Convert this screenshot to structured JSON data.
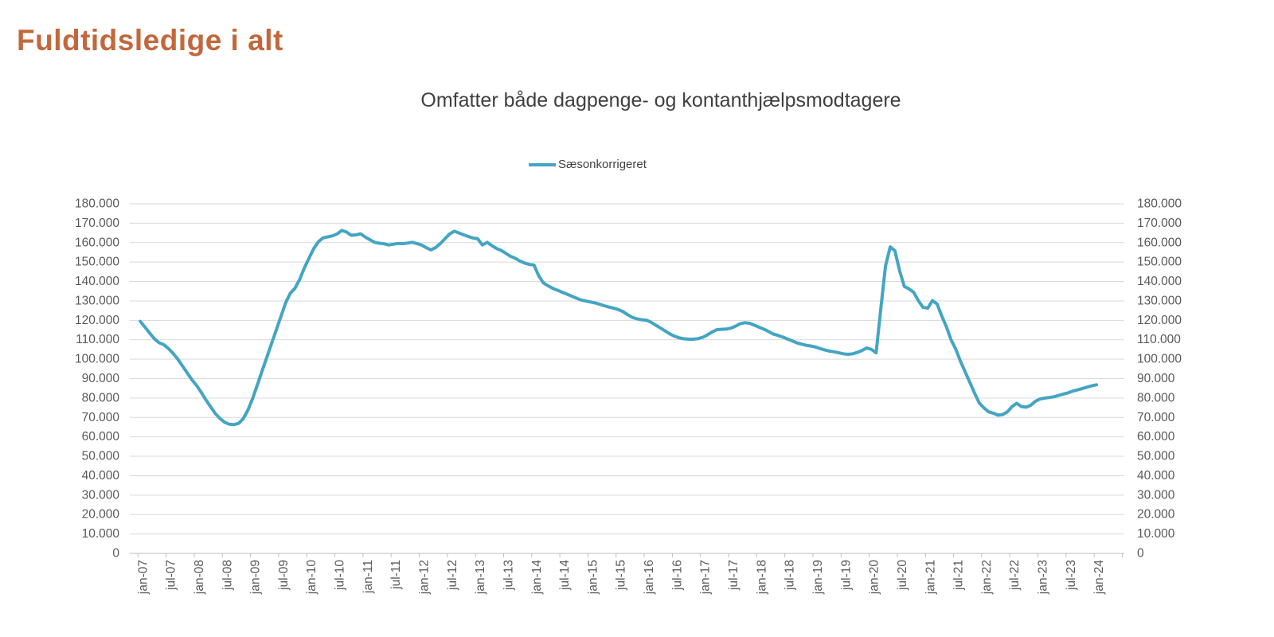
{
  "header": {
    "title": "Fuldtidsledige i alt"
  },
  "chart": {
    "subtitle": "Omfatter både dagpenge- og kontanthjælpsmodtagere",
    "legend": {
      "label": "Sæsonkorrigeret"
    }
  },
  "colors": {
    "title": "#C2683C",
    "subtitle": "#404040",
    "series_line": "#44A5C2",
    "gridline": "#D9D9D9",
    "axis_line": "#BFBFBF",
    "tick_label": "#595959"
  },
  "chart_data": {
    "type": "line",
    "title": "Omfatter både dagpenge- og kontanthjælpsmodtagere",
    "xlabel": "",
    "ylabel": "",
    "ylim": [
      0,
      180000
    ],
    "y_step": 10000,
    "grid": "horizontal",
    "legend_position": "top-center",
    "axes": {
      "left_labels": true,
      "right_labels": true
    },
    "x_frequency": "monthly",
    "x_start": "jan-07",
    "x_end": "jan-24",
    "x_tick_labels": [
      "jan-07",
      "jul-07",
      "jan-08",
      "jul-08",
      "jan-09",
      "jul-09",
      "jan-10",
      "jul-10",
      "jan-11",
      "jul-11",
      "jan-12",
      "jul-12",
      "jan-13",
      "jul-13",
      "jan-14",
      "jul-14",
      "jan-15",
      "jul-15",
      "jan-16",
      "jul-16",
      "jan-17",
      "jul-17",
      "jan-18",
      "jul-18",
      "jan-19",
      "jul-19",
      "jan-20",
      "jul-20",
      "jan-21",
      "jul-21",
      "jan-22",
      "jul-22",
      "jan-23",
      "jul-23",
      "jan-24"
    ],
    "y_tick_labels": [
      "180.000",
      "170.000",
      "160.000",
      "150.000",
      "140.000",
      "130.000",
      "120.000",
      "110.000",
      "100.000",
      "90.000",
      "80.000",
      "70.000",
      "60.000",
      "50.000",
      "40.000",
      "30.000",
      "20.000",
      "10.000",
      "0"
    ],
    "series": [
      {
        "name": "Sæsonkorrigeret",
        "color": "#44A5C2",
        "values": [
          119500,
          116500,
          113500,
          110500,
          108500,
          107500,
          105500,
          103000,
          100000,
          96500,
          93000,
          89500,
          86500,
          83000,
          79000,
          75500,
          72000,
          69500,
          67500,
          66500,
          66300,
          67000,
          69500,
          74000,
          80000,
          87000,
          94000,
          101000,
          108000,
          115000,
          122000,
          129000,
          134000,
          136500,
          141000,
          147000,
          152000,
          157000,
          160500,
          162500,
          163000,
          163500,
          164500,
          166300,
          165500,
          163800,
          164000,
          164600,
          162900,
          161500,
          160200,
          159700,
          159400,
          158800,
          159200,
          159600,
          159500,
          159800,
          160200,
          159600,
          158800,
          157400,
          156300,
          157500,
          159500,
          162000,
          164500,
          165900,
          165000,
          164000,
          163200,
          162400,
          162000,
          158800,
          160200,
          158500,
          157000,
          156000,
          154500,
          153000,
          152000,
          150500,
          149500,
          148800,
          148500,
          143000,
          139300,
          137800,
          136500,
          135500,
          134500,
          133500,
          132500,
          131500,
          130500,
          130000,
          129500,
          129000,
          128300,
          127500,
          126800,
          126300,
          125500,
          124500,
          122900,
          121500,
          120800,
          120300,
          120100,
          119000,
          117500,
          116000,
          114500,
          113000,
          111800,
          111000,
          110500,
          110300,
          110300,
          110600,
          111300,
          112500,
          114000,
          115200,
          115400,
          115500,
          116000,
          117000,
          118300,
          118800,
          118500,
          117500,
          116500,
          115500,
          114300,
          113000,
          112300,
          111500,
          110500,
          109500,
          108500,
          107800,
          107200,
          106800,
          106300,
          105500,
          104800,
          104200,
          103800,
          103300,
          102800,
          102500,
          102800,
          103500,
          104500,
          105800,
          105000,
          103300,
          126000,
          148000,
          157800,
          155800,
          145500,
          137500,
          136200,
          134500,
          130200,
          126700,
          126300,
          130200,
          128400,
          122200,
          116700,
          109900,
          105100,
          98900,
          93400,
          88000,
          82500,
          77500,
          74900,
          72900,
          72200,
          71200,
          71500,
          72900,
          75600,
          77300,
          75600,
          75300,
          76300,
          78400,
          79500,
          80000,
          80300,
          80700,
          81400,
          82100,
          82700,
          83600,
          84200,
          84900,
          85600,
          86300,
          86800
        ]
      }
    ]
  }
}
